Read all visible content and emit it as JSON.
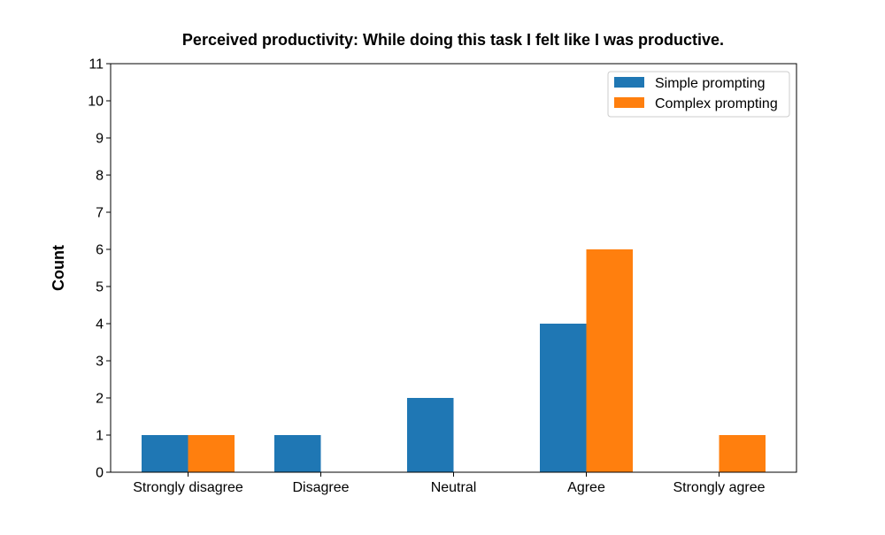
{
  "chart_data": {
    "type": "bar",
    "title": "Perceived productivity: While doing this task I felt like I was productive.",
    "xlabel": "",
    "ylabel": "Count",
    "categories": [
      "Strongly disagree",
      "Disagree",
      "Neutral",
      "Agree",
      "Strongly agree"
    ],
    "series": [
      {
        "name": "Simple prompting",
        "values": [
          1,
          1,
          2,
          4,
          0
        ],
        "color": "#1f77b4"
      },
      {
        "name": "Complex prompting",
        "values": [
          1,
          0,
          0,
          6,
          1
        ],
        "color": "#ff7f0e"
      }
    ],
    "ylim": [
      0,
      11
    ],
    "yticks": [
      "0",
      "1",
      "2",
      "3",
      "4",
      "5",
      "6",
      "7",
      "8",
      "9",
      "10",
      "11"
    ],
    "grid": false,
    "legend_position": "top-right"
  }
}
